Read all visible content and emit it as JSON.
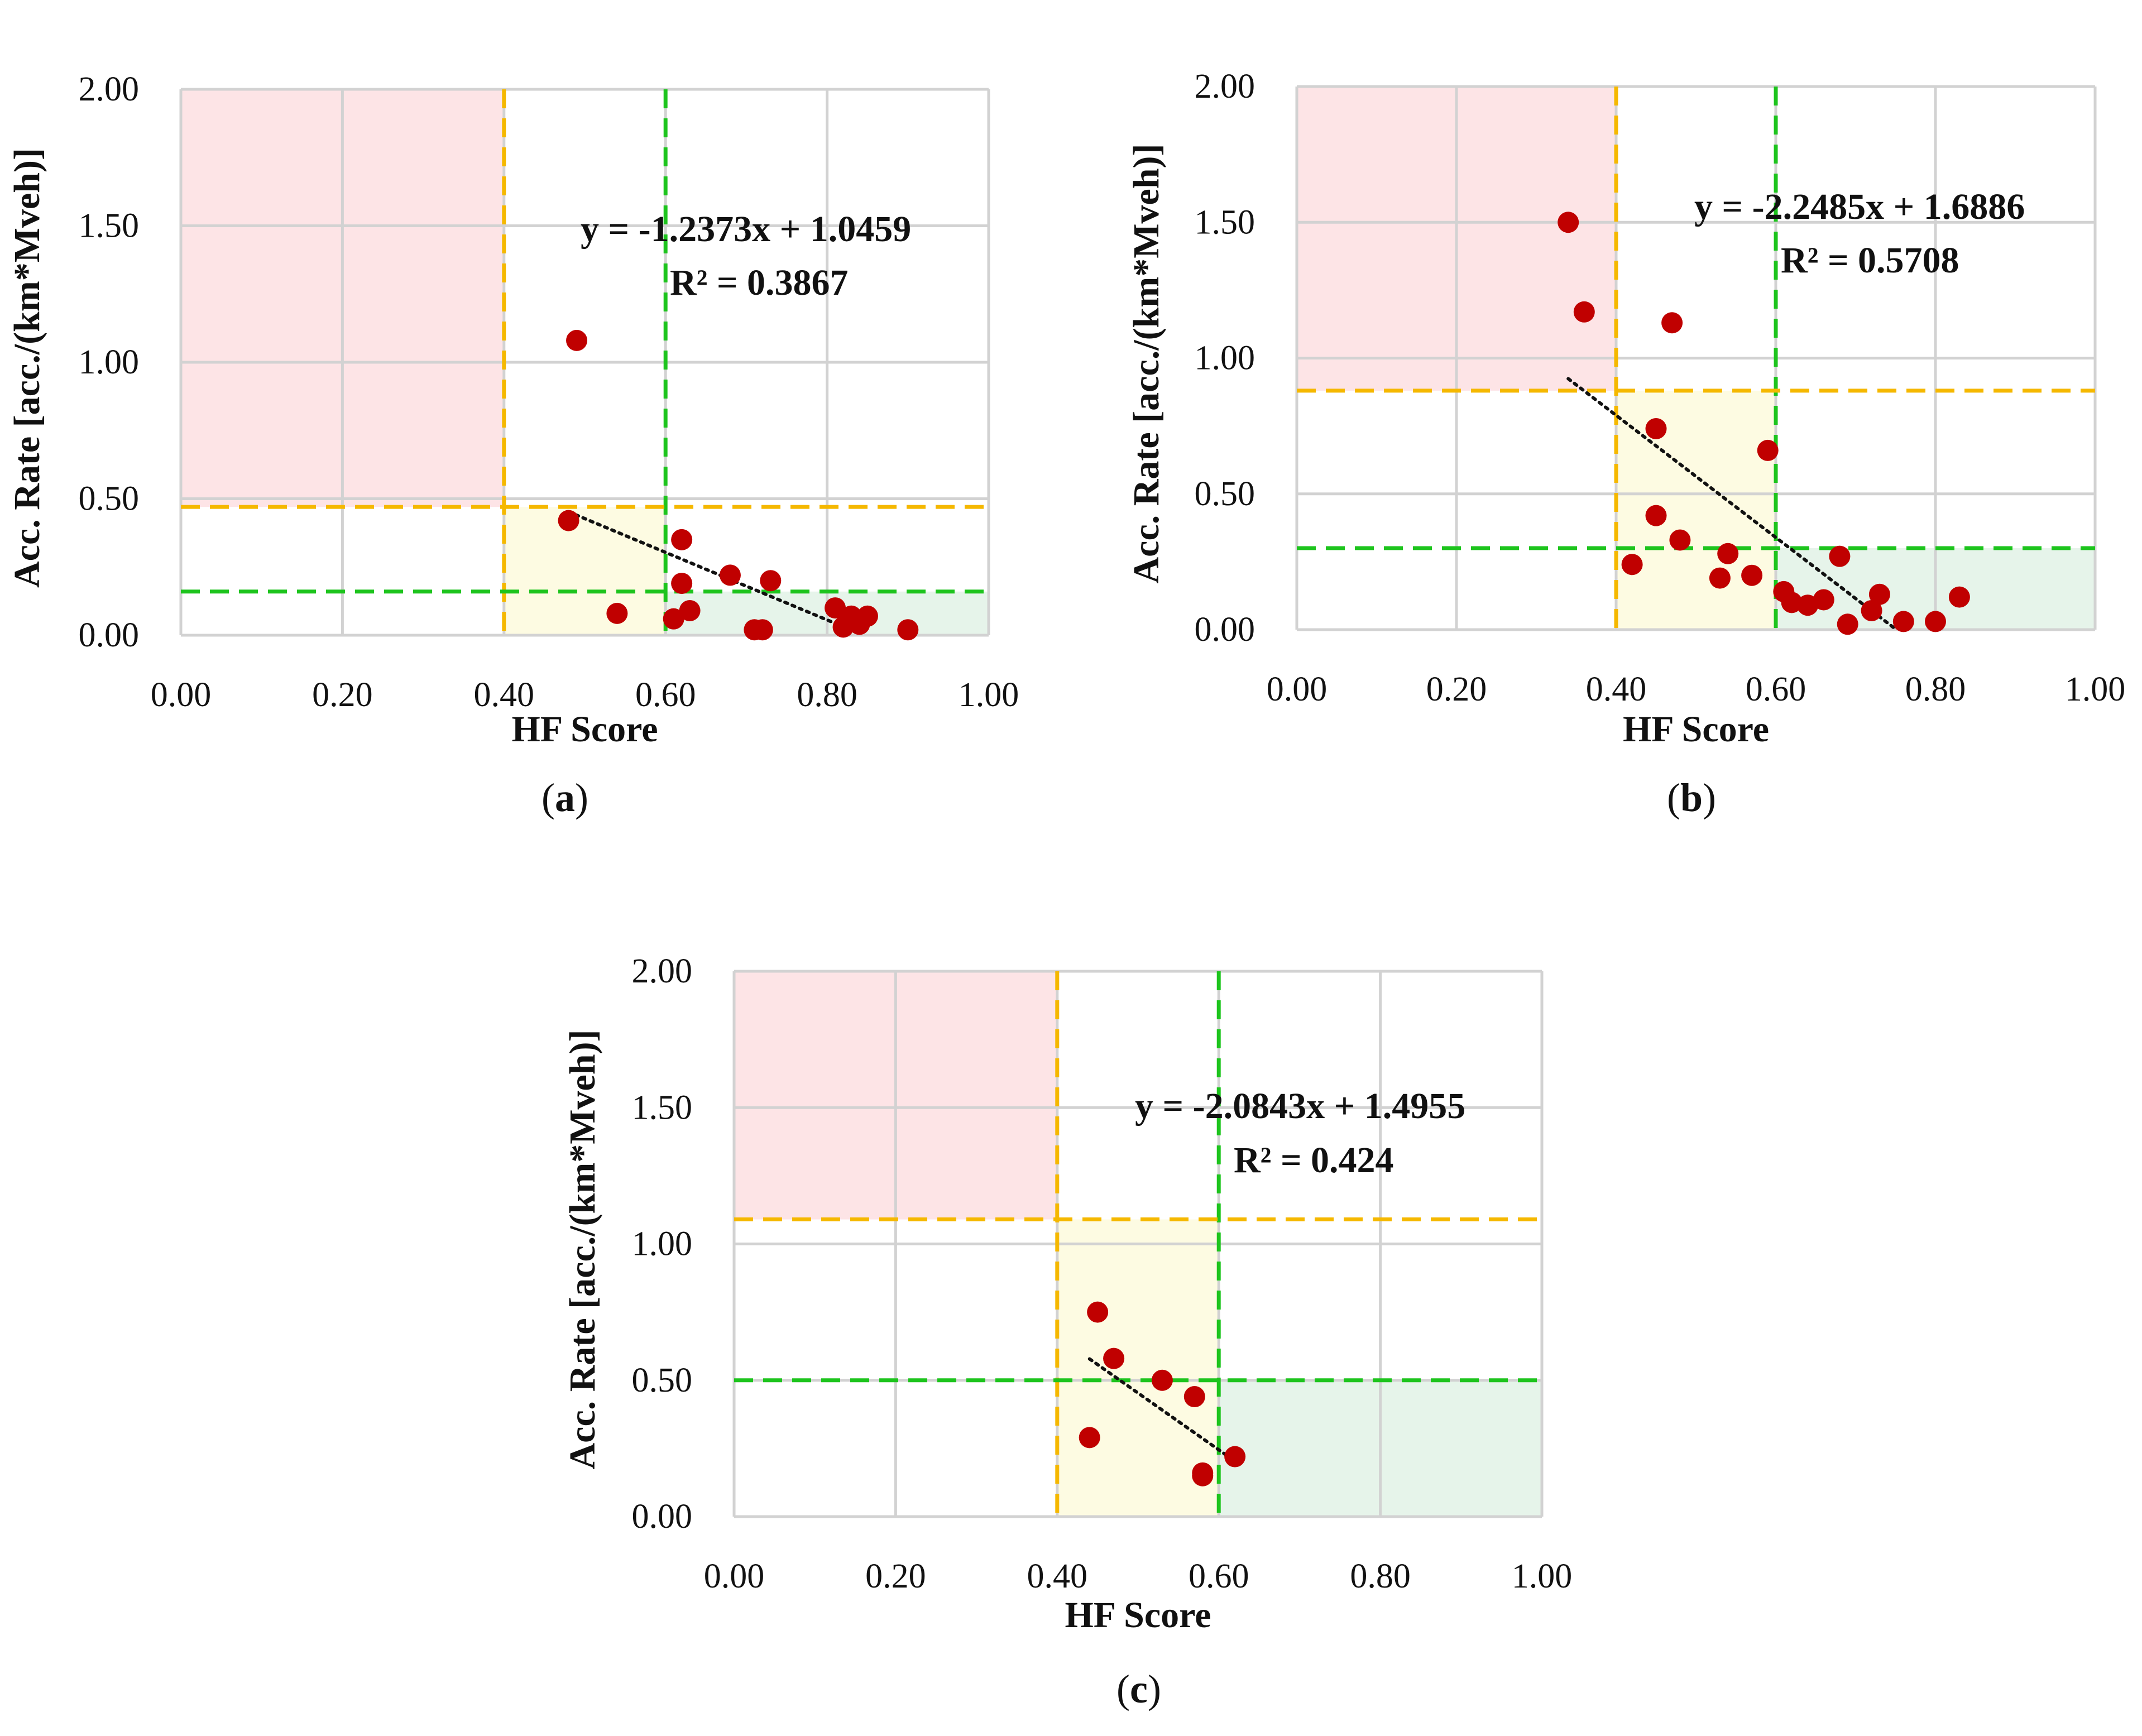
{
  "colors": {
    "red_zone": "#fde4e6",
    "yellow_zone": "#fdfbe2",
    "green_zone": "#e6f4ea",
    "orange_line": "#f5b800",
    "green_line": "#1dc41d",
    "grid": "#d2d2d2",
    "point": "#c00000",
    "trend": "#111111",
    "text": "#111111"
  },
  "labels": {
    "a_open": "(",
    "a": "a",
    "a_close": ")",
    "b_open": "(",
    "b": "b",
    "b_close": ")",
    "c_open": "(",
    "c": "c",
    "c_close": ")"
  },
  "chart_data": [
    {
      "id": "a",
      "type": "scatter",
      "xlabel": "HF Score",
      "ylabel": "Acc. Rate [acc./(km*Mveh)]",
      "xlim": [
        0,
        1
      ],
      "ylim": [
        0,
        2
      ],
      "xticks": [
        "0.00",
        "0.20",
        "0.40",
        "0.60",
        "0.80",
        "1.00"
      ],
      "yticks": [
        "0.00",
        "0.50",
        "1.00",
        "1.50",
        "2.00"
      ],
      "grid": true,
      "threshold_x": [
        0.4,
        0.6
      ],
      "threshold_y": [
        0.47,
        0.16
      ],
      "trend": {
        "slope": -1.2373,
        "intercept": 1.0459,
        "x_range": [
          0.48,
          0.83
        ]
      },
      "equation": "y = -1.2373x + 1.0459",
      "r2": "R² = 0.3867",
      "x": [
        0.49,
        0.48,
        0.54,
        0.62,
        0.62,
        0.61,
        0.63,
        0.68,
        0.73,
        0.71,
        0.72,
        0.81,
        0.82,
        0.83,
        0.84,
        0.85,
        0.9
      ],
      "y": [
        1.08,
        0.42,
        0.08,
        0.35,
        0.19,
        0.06,
        0.09,
        0.22,
        0.2,
        0.02,
        0.02,
        0.1,
        0.03,
        0.07,
        0.04,
        0.07,
        0.02
      ]
    },
    {
      "id": "b",
      "type": "scatter",
      "xlabel": "HF Score",
      "ylabel": "Acc. Rate [acc./(km*Mveh)]",
      "xlim": [
        0,
        1
      ],
      "ylim": [
        0,
        2
      ],
      "xticks": [
        "0.00",
        "0.20",
        "0.40",
        "0.60",
        "0.80",
        "1.00"
      ],
      "yticks": [
        "0.00",
        "0.50",
        "1.00",
        "1.50",
        "2.00"
      ],
      "grid": true,
      "threshold_x": [
        0.4,
        0.6
      ],
      "threshold_y": [
        0.88,
        0.3
      ],
      "trend": {
        "slope": -2.2485,
        "intercept": 1.6886,
        "x_range": [
          0.34,
          0.75
        ]
      },
      "equation": "y = -2.2485x + 1.6886",
      "r2": "R² = 0.5708",
      "x": [
        0.34,
        0.36,
        0.47,
        0.45,
        0.45,
        0.42,
        0.48,
        0.54,
        0.53,
        0.57,
        0.59,
        0.61,
        0.62,
        0.64,
        0.66,
        0.68,
        0.69,
        0.72,
        0.73,
        0.76,
        0.8,
        0.83
      ],
      "y": [
        1.5,
        1.17,
        1.13,
        0.74,
        0.42,
        0.24,
        0.33,
        0.28,
        0.19,
        0.2,
        0.66,
        0.14,
        0.1,
        0.09,
        0.11,
        0.27,
        0.02,
        0.07,
        0.13,
        0.03,
        0.03,
        0.12
      ]
    },
    {
      "id": "c",
      "type": "scatter",
      "xlabel": "HF Score",
      "ylabel": "Acc. Rate [acc./(km*Mveh)]",
      "xlim": [
        0,
        1
      ],
      "ylim": [
        0,
        2
      ],
      "xticks": [
        "0.00",
        "0.20",
        "0.40",
        "0.60",
        "0.80",
        "1.00"
      ],
      "yticks": [
        "0.00",
        "0.50",
        "1.00",
        "1.50",
        "2.00"
      ],
      "grid": true,
      "threshold_x": [
        0.4,
        0.6
      ],
      "threshold_y": [
        1.09,
        0.5
      ],
      "trend": {
        "slope": -2.0843,
        "intercept": 1.4955,
        "x_range": [
          0.44,
          0.62
        ]
      },
      "equation": "y = -2.0843x + 1.4955",
      "r2": "R² = 0.424",
      "x": [
        0.45,
        0.47,
        0.53,
        0.57,
        0.44,
        0.58,
        0.58,
        0.62
      ],
      "y": [
        0.75,
        0.58,
        0.5,
        0.44,
        0.29,
        0.16,
        0.15,
        0.22
      ]
    }
  ]
}
